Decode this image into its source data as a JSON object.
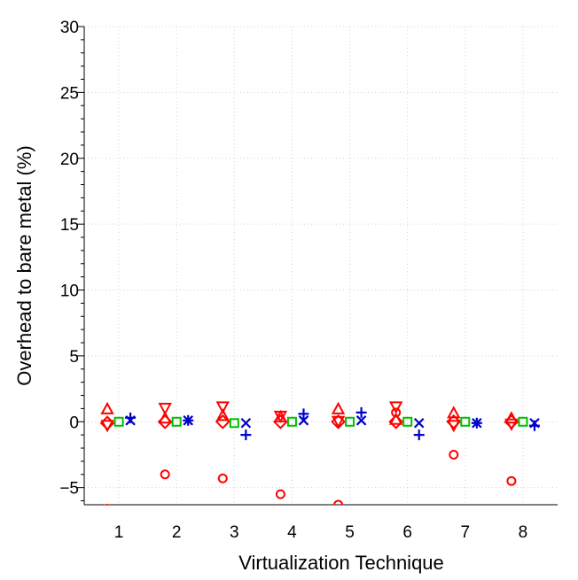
{
  "chart_data": {
    "type": "scatter",
    "title": "",
    "xlabel": "Virtualization Technique",
    "ylabel": "Overhead to bare metal (%)",
    "x_ticks": [
      "1",
      "2",
      "3",
      "4",
      "5",
      "6",
      "7",
      "8"
    ],
    "y_ticks": [
      "−5",
      "0",
      "5",
      "10",
      "15",
      "20",
      "25",
      "30"
    ],
    "xlim": [
      0.4,
      8.6
    ],
    "ylim": [
      -6.3,
      30
    ],
    "grid": true,
    "grid_style": "dotted",
    "legend": "none",
    "series": [
      {
        "marker": "circle",
        "color": "#ff0000",
        "offset": -0.2,
        "values": [
          -6.6,
          -4.0,
          -4.3,
          -5.5,
          -6.3,
          0.7,
          -2.5,
          -4.5
        ]
      },
      {
        "marker": "triangle-up",
        "color": "#ff0000",
        "offset": -0.2,
        "values": [
          0.9,
          0.2,
          0.4,
          0.3,
          0.9,
          0.1,
          0.6,
          0.2
        ]
      },
      {
        "marker": "triangle-down",
        "color": "#ff0000",
        "offset": -0.2,
        "values": [
          -0.2,
          1.1,
          1.2,
          0.5,
          0.1,
          1.2,
          -0.2,
          -0.1
        ]
      },
      {
        "marker": "diamond",
        "color": "#ff0000",
        "offset": -0.2,
        "values": [
          -0.1,
          0.0,
          0.0,
          0.0,
          0.0,
          0.0,
          0.0,
          0.0
        ]
      },
      {
        "marker": "square",
        "color": "#00c000",
        "offset": 0.0,
        "values": [
          0.0,
          0.0,
          -0.1,
          0.0,
          0.0,
          0.0,
          0.0,
          0.0
        ]
      },
      {
        "marker": "plus",
        "color": "#0000cc",
        "offset": 0.2,
        "values": [
          0.3,
          0.1,
          -1.0,
          0.6,
          0.7,
          -1.0,
          -0.1,
          -0.3
        ]
      },
      {
        "marker": "cross",
        "color": "#0000cc",
        "offset": 0.2,
        "values": [
          0.1,
          0.1,
          -0.1,
          0.1,
          0.1,
          -0.1,
          -0.1,
          -0.1
        ]
      }
    ]
  }
}
